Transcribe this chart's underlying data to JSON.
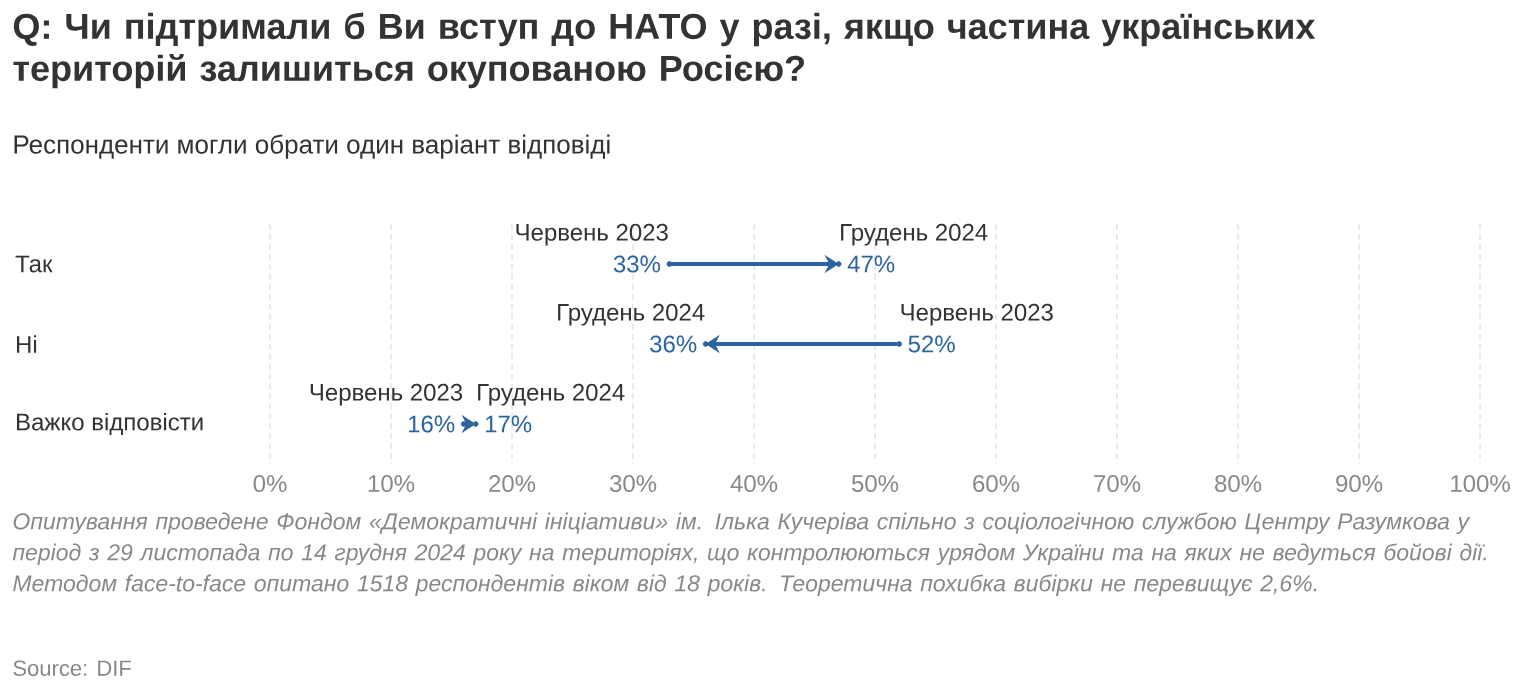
{
  "chart_data": {
    "type": "scatter",
    "orientation": "horizontal",
    "title": "Q: Чи підтримали б Ви вступ до НАТО у разі, якщо частина українських територій залишиться окупованою Росією?",
    "subtitle": "Респонденти могли обрати один варіант відповіді",
    "categories": [
      "Так",
      "Ні",
      "Важко відповісти"
    ],
    "series": [
      {
        "name": "Червень 2023",
        "color": "#2b64a0",
        "values": [
          33,
          52,
          16
        ],
        "value_labels": [
          "33%",
          "52%",
          "16%"
        ]
      },
      {
        "name": "Грудень 2024",
        "color": "#2b64a0",
        "values": [
          47,
          36,
          17
        ],
        "value_labels": [
          "47%",
          "36%",
          "17%"
        ]
      }
    ],
    "xlim": [
      0,
      100
    ],
    "xticks": [
      {
        "value": 0,
        "label": "0%"
      },
      {
        "value": 10,
        "label": "10%"
      },
      {
        "value": 20,
        "label": "20%"
      },
      {
        "value": 30,
        "label": "30%"
      },
      {
        "value": 40,
        "label": "40%"
      },
      {
        "value": 50,
        "label": "50%"
      },
      {
        "value": 60,
        "label": "60%"
      },
      {
        "value": 70,
        "label": "70%"
      },
      {
        "value": 80,
        "label": "80%"
      },
      {
        "value": 90,
        "label": "90%"
      },
      {
        "value": 100,
        "label": "100%"
      }
    ],
    "grid": "x",
    "annotations": [
      "Опитування проведене Фондом «Демократичні ініціативи» ім. Ілька Кучеріва спільно з соціологічною службою Центру Разумкова у період з 29 листопада по 14 грудня 2024 року на територіях, що контролюються урядом України та на яких не ведуться бойові дії. Методом face-to-face опитано 1518 респондентів віком від 18 років. Теоретична похибка вибірки не перевищує 2,6%.",
      "Source: DIF"
    ]
  }
}
